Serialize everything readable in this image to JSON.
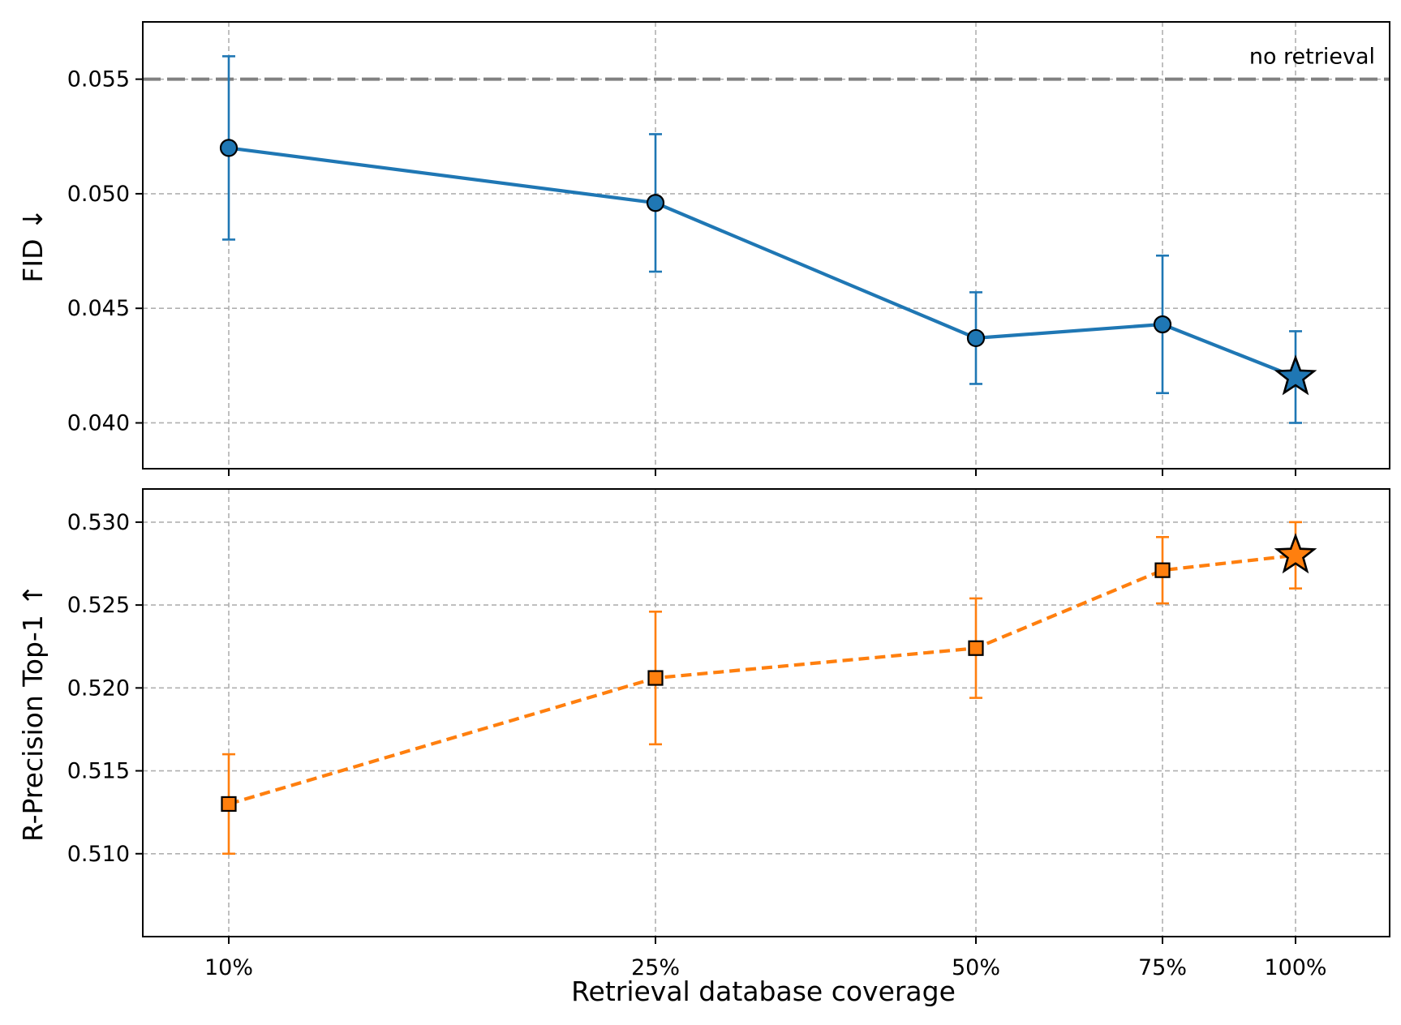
{
  "chart_data": [
    {
      "type": "line",
      "panel": "top",
      "ylabel": "FID ↓",
      "xlabel": "",
      "x_categories": [
        "10%",
        "25%",
        "50%",
        "75%",
        "100%"
      ],
      "x_positions": [
        10,
        25,
        50,
        75,
        100
      ],
      "ylim": [
        0.038,
        0.0575
      ],
      "yticks": [
        "0.040",
        "0.045",
        "0.050",
        "0.055"
      ],
      "ytick_values": [
        0.04,
        0.045,
        0.05,
        0.055
      ],
      "grid": true,
      "series": [
        {
          "values": [
            0.052,
            0.0496,
            0.0437,
            0.0443,
            0.042
          ],
          "errors": [
            0.004,
            0.003,
            0.002,
            0.003,
            0.002
          ],
          "color": "#1f77b4",
          "line_style": "solid",
          "marker": "circle",
          "highlight_last": "star"
        }
      ],
      "reference_line": {
        "value": 0.055,
        "label": "no retrieval",
        "color": "#808080"
      }
    },
    {
      "type": "line",
      "panel": "bottom",
      "ylabel": "R-Precision Top-1 ↑",
      "xlabel": "Retrieval database coverage",
      "x_categories": [
        "10%",
        "25%",
        "50%",
        "75%",
        "100%"
      ],
      "x_positions": [
        10,
        25,
        50,
        75,
        100
      ],
      "ylim": [
        0.505,
        0.532
      ],
      "yticks": [
        "0.510",
        "0.515",
        "0.520",
        "0.525",
        "0.530"
      ],
      "ytick_values": [
        0.51,
        0.515,
        0.52,
        0.525,
        0.53
      ],
      "grid": true,
      "series": [
        {
          "values": [
            0.513,
            0.5206,
            0.5224,
            0.5271,
            0.528
          ],
          "errors": [
            0.003,
            0.004,
            0.003,
            0.002,
            0.002
          ],
          "color": "#ff7f0e",
          "line_style": "dashed",
          "marker": "square",
          "highlight_last": "star"
        }
      ]
    }
  ]
}
